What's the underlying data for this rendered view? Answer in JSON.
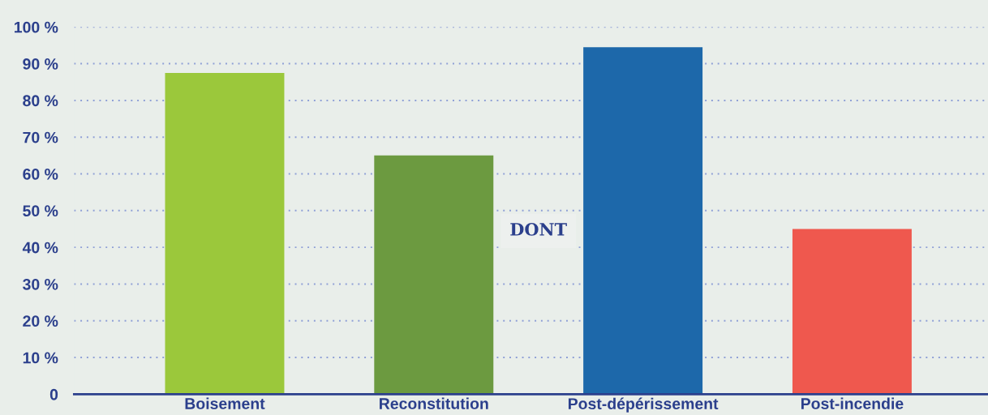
{
  "chart_data": {
    "type": "bar",
    "categories": [
      "Boisement",
      "Reconstitution",
      "Post-dépérissement",
      "Post-incendie"
    ],
    "values": [
      87.5,
      65,
      94.5,
      45
    ],
    "colors": [
      "#9bc83b",
      "#6c9a40",
      "#1d68aa",
      "#ef584e"
    ],
    "ylim": [
      0,
      100
    ],
    "yticks": [
      {
        "value": 0,
        "label": "0"
      },
      {
        "value": 10,
        "label": "10 %"
      },
      {
        "value": 20,
        "label": "20 %"
      },
      {
        "value": 30,
        "label": "30 %"
      },
      {
        "value": 40,
        "label": "40 %"
      },
      {
        "value": 50,
        "label": "50 %"
      },
      {
        "value": 60,
        "label": "60 %"
      },
      {
        "value": 70,
        "label": "70 %"
      },
      {
        "value": 80,
        "label": "80 %"
      },
      {
        "value": 90,
        "label": "90 %"
      },
      {
        "value": 100,
        "label": "100 %"
      }
    ],
    "grid": "y",
    "annotations": [
      "DONT"
    ]
  }
}
